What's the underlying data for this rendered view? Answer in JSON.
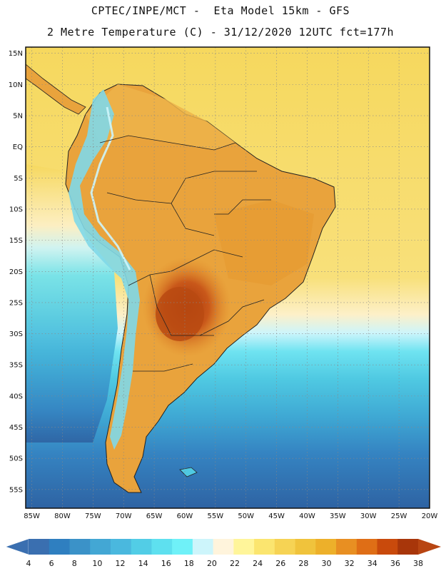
{
  "header": {
    "line1": "CPTEC/INPE/MCT -  Eta Model 15km - GFS",
    "line2": "2 Metre Temperature (C) - 31/12/2020 12UTC fct=177h"
  },
  "map": {
    "lat_ticks": [
      "15N",
      "10N",
      "5N",
      "EQ",
      "5S",
      "10S",
      "15S",
      "20S",
      "25S",
      "30S",
      "35S",
      "40S",
      "45S",
      "50S",
      "55S"
    ],
    "lon_ticks": [
      "85W",
      "80W",
      "75W",
      "70W",
      "65W",
      "60W",
      "55W",
      "50W",
      "45W",
      "40W",
      "35W",
      "30W",
      "25W",
      "20W"
    ],
    "lon_range": [
      -86,
      -20
    ],
    "lat_range": [
      -58,
      16
    ],
    "colors": {
      "ocean_tropical": "#f6dc6a",
      "land_warm": "#e8a23a",
      "hot_core": "#b04a12",
      "andes": "#7fd8e8",
      "south_ocean_deep": "#2e63a3"
    }
  },
  "colorbar": {
    "labels": [
      "4",
      "6",
      "8",
      "10",
      "12",
      "14",
      "16",
      "18",
      "20",
      "22",
      "24",
      "26",
      "28",
      "30",
      "32",
      "34",
      "36",
      "38"
    ],
    "colors": [
      "#3a6fb0",
      "#2f7fc0",
      "#3b92c8",
      "#43a7d4",
      "#4ab8de",
      "#52cde6",
      "#5ee0ef",
      "#6ff1f8",
      "#cdf5fb",
      "#fff4dc",
      "#fff59a",
      "#fbe56f",
      "#f6d354",
      "#f0c33c",
      "#edb02a",
      "#e88f22",
      "#df6e16",
      "#c94a0c",
      "#a8360a",
      "#b84512"
    ]
  }
}
